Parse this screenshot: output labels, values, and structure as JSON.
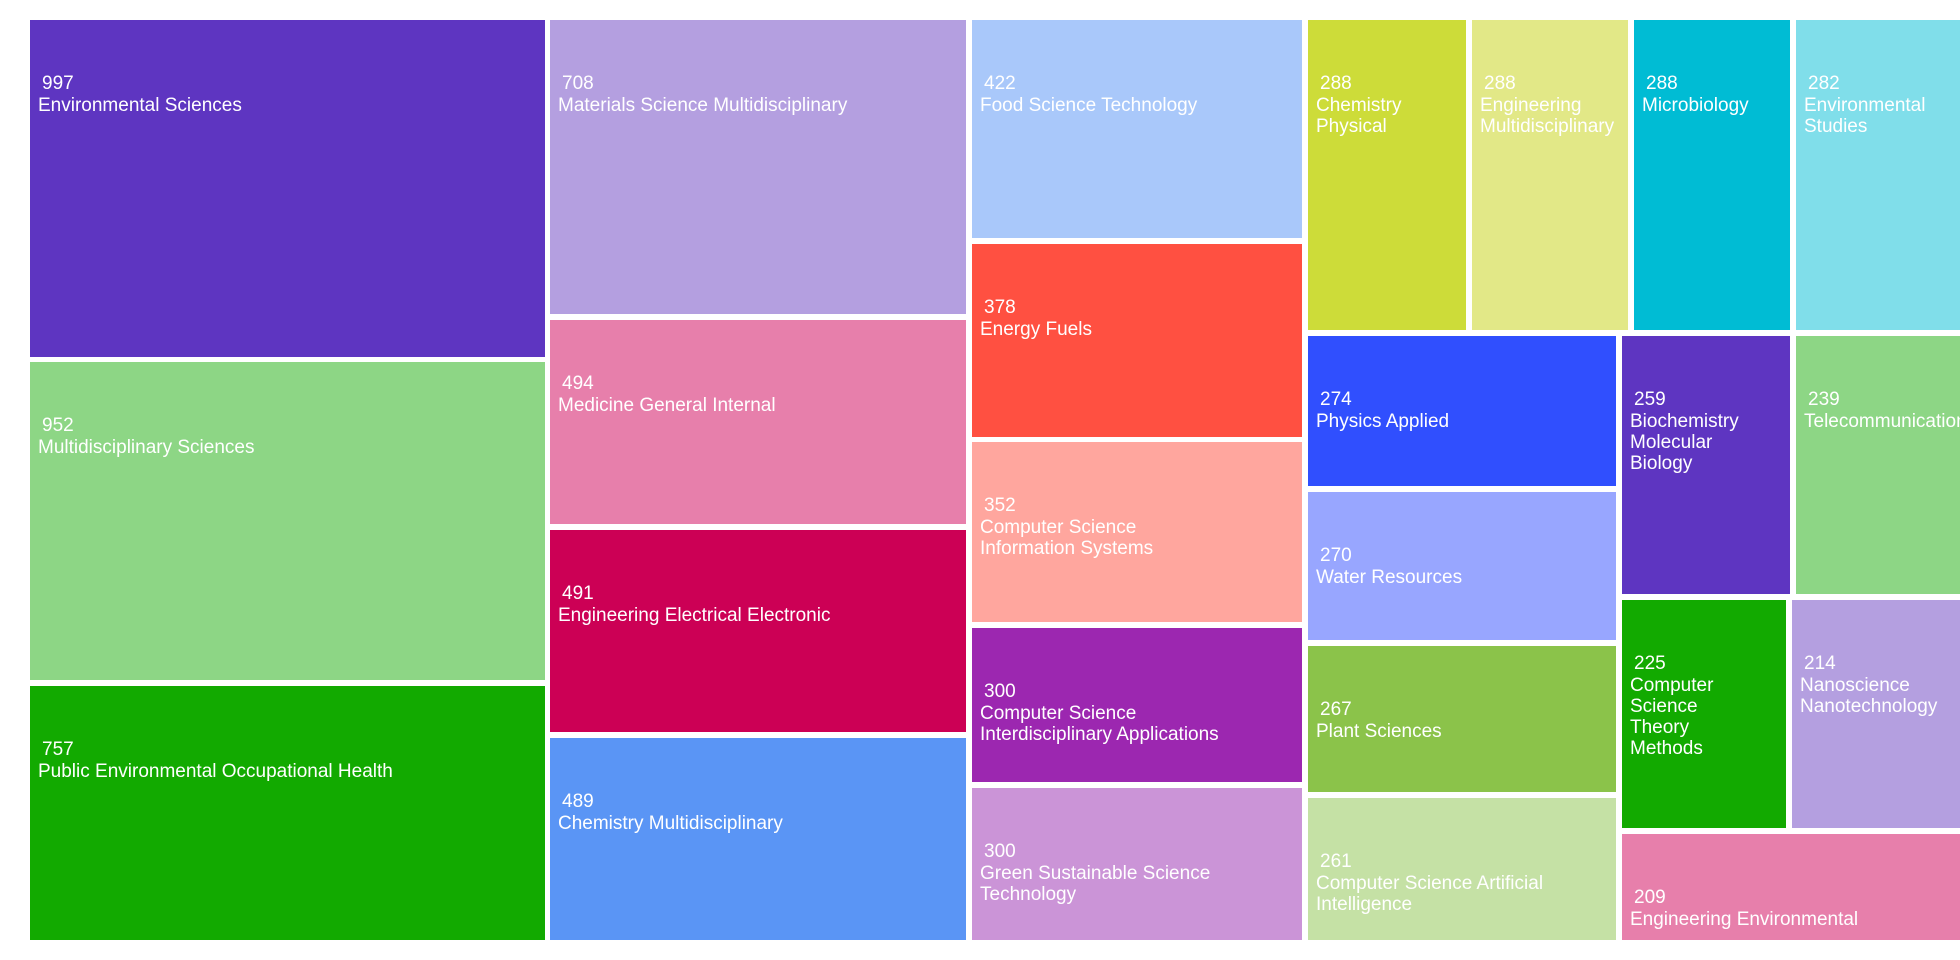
{
  "chart_data": {
    "type": "treemap",
    "items": [
      {
        "label": "Environmental Sciences",
        "value": 997,
        "color": "#5e35c1"
      },
      {
        "label": "Multidisciplinary Sciences",
        "value": 952,
        "color": "#8dd685"
      },
      {
        "label": "Public Environmental Occupational Health",
        "value": 757,
        "color": "#12aa00"
      },
      {
        "label": "Materials Science Multidisciplinary",
        "value": 708,
        "color": "#b49fe0"
      },
      {
        "label": "Medicine General Internal",
        "value": 494,
        "color": "#e77fab"
      },
      {
        "label": "Engineering Electrical Electronic",
        "value": 491,
        "color": "#cc0055"
      },
      {
        "label": "Chemistry Multidisciplinary",
        "value": 489,
        "color": "#5a95f5"
      },
      {
        "label": "Food Science Technology",
        "value": 422,
        "color": "#a9c8fa"
      },
      {
        "label": "Energy Fuels",
        "value": 378,
        "color": "#ff5041"
      },
      {
        "label": "Computer Science\nInformation Systems",
        "value": 352,
        "color": "#ffa69e"
      },
      {
        "label": "Computer Science\nInterdisciplinary Applications",
        "value": 300,
        "color": "#9c27b0"
      },
      {
        "label": "Green Sustainable Science\nTechnology",
        "value": 300,
        "color": "#cb94d7"
      },
      {
        "label": "Chemistry\nPhysical",
        "value": 288,
        "color": "#cddc39"
      },
      {
        "label": "Engineering\nMultidisciplinary",
        "value": 288,
        "color": "#e2e887"
      },
      {
        "label": "Microbiology",
        "value": 288,
        "color": "#00bcd4"
      },
      {
        "label": "Environmental\nStudies",
        "value": 282,
        "color": "#80deea"
      },
      {
        "label": "Physics Applied",
        "value": 274,
        "color": "#304ffe"
      },
      {
        "label": "Water Resources",
        "value": 270,
        "color": "#98a6ff"
      },
      {
        "label": "Plant Sciences",
        "value": 267,
        "color": "#8bc34a"
      },
      {
        "label": "Computer Science Artificial\nIntelligence",
        "value": 261,
        "color": "#c5e1a5"
      },
      {
        "label": "Biochemistry\nMolecular\nBiology",
        "value": 259,
        "color": "#5e35c1"
      },
      {
        "label": "Telecommunications",
        "value": 239,
        "color": "#8dd685"
      },
      {
        "label": "Computer\nScience\nTheory\nMethods",
        "value": 225,
        "color": "#12aa00"
      },
      {
        "label": "Nanoscience\nNanotechnology",
        "value": 214,
        "color": "#b49fe0"
      },
      {
        "label": "Engineering Environmental",
        "value": 209,
        "color": "#e77fab"
      }
    ]
  }
}
